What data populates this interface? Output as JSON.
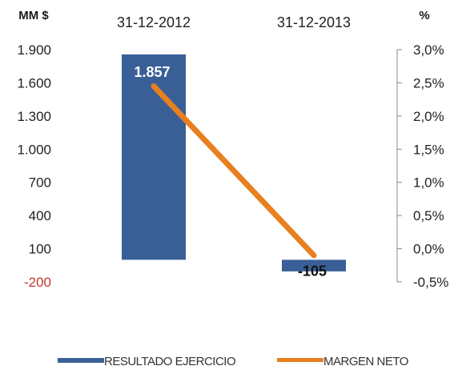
{
  "chart_data": {
    "type": "bar",
    "categories": [
      "31-12-2012",
      "31-12-2013"
    ],
    "left_axis_label": "MM $",
    "right_axis_label": "%",
    "left_ticks": [
      -200,
      100,
      400,
      700,
      1000,
      1300,
      1600,
      1900
    ],
    "left_tick_labels": [
      "-200",
      "100",
      "400",
      "700",
      "1.000",
      "1.300",
      "1.600",
      "1.900"
    ],
    "right_ticks": [
      -0.5,
      0,
      0.5,
      1.0,
      1.5,
      2.0,
      2.5,
      3.0
    ],
    "right_tick_labels": [
      "-0,5%",
      "0,0%",
      "0,5%",
      "1,0%",
      "1,5%",
      "2,0%",
      "2,5%",
      "3,0%"
    ],
    "left_ylim": [
      -200,
      1900
    ],
    "right_ylim": [
      -0.5,
      3.0
    ],
    "grid": false,
    "legend_position": "bottom",
    "series": [
      {
        "name": "RESULTADO EJERCICIO",
        "type": "bar",
        "axis": "left",
        "color": "#3a5f97",
        "values": [
          1857,
          -105
        ],
        "data_labels": [
          "1.857",
          "-105"
        ]
      },
      {
        "name": "MARGEN NETO",
        "type": "line",
        "axis": "right",
        "color": "#e8801f",
        "values": [
          2.45,
          -0.1
        ]
      }
    ],
    "negative_tick_color": "#c0392b"
  }
}
